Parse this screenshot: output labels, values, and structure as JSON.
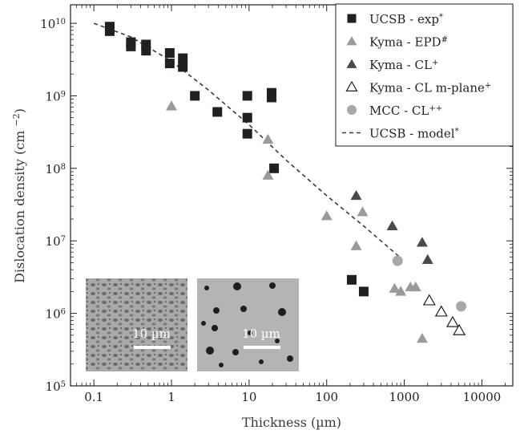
{
  "chart_data": {
    "type": "scatter",
    "xlabel": "Thickness (µm)",
    "ylabel": "Dislocation density (cm−2)",
    "xscale": "log",
    "yscale": "log",
    "xlim": [
      0.05,
      25000
    ],
    "ylim": [
      100000,
      18000000000
    ],
    "x_ticks": [
      {
        "value": 0.1,
        "label": "0.1"
      },
      {
        "value": 1,
        "label": "1"
      },
      {
        "value": 10,
        "label": "10"
      },
      {
        "value": 100,
        "label": "100"
      },
      {
        "value": 1000,
        "label": "1000"
      },
      {
        "value": 10000,
        "label": "10000"
      }
    ],
    "y_ticks": [
      {
        "value": 100000,
        "base": "10",
        "exp": "5"
      },
      {
        "value": 1000000,
        "base": "10",
        "exp": "6"
      },
      {
        "value": 10000000,
        "base": "10",
        "exp": "7"
      },
      {
        "value": 100000000,
        "base": "10",
        "exp": "8"
      },
      {
        "value": 1000000000,
        "base": "10",
        "exp": "9"
      },
      {
        "value": 10000000000,
        "base": "10",
        "exp": "10"
      }
    ],
    "legend_position": "top-right",
    "series": [
      {
        "name": "UCSB - exp",
        "name_sup": "*",
        "marker": "square",
        "color": "#231f20",
        "points": [
          [
            0.16,
            9000000000
          ],
          [
            0.16,
            7800000000
          ],
          [
            0.3,
            5500000000
          ],
          [
            0.3,
            4800000000
          ],
          [
            0.47,
            5100000000
          ],
          [
            0.47,
            4200000000
          ],
          [
            0.95,
            3900000000
          ],
          [
            0.95,
            2800000000
          ],
          [
            1.4,
            3300000000
          ],
          [
            1.4,
            2500000000
          ],
          [
            2,
            1000000000
          ],
          [
            3.9,
            600000000
          ],
          [
            9.5,
            1000000000
          ],
          [
            9.5,
            500000000
          ],
          [
            9.5,
            300000000
          ],
          [
            19.5,
            1100000000
          ],
          [
            19.5,
            950000000
          ],
          [
            21,
            100000000
          ],
          [
            210,
            2900000
          ],
          [
            300,
            2000000
          ]
        ]
      },
      {
        "name": "Kyma - EPD",
        "name_sup": "#",
        "marker": "triangle",
        "color": "#9a9a9a",
        "points": [
          [
            1,
            720000000
          ],
          [
            17.5,
            250000000
          ],
          [
            17.5,
            80000000
          ],
          [
            100,
            22000000
          ],
          [
            240,
            8500000
          ],
          [
            290,
            25000000
          ],
          [
            750,
            2200000
          ],
          [
            900,
            2000000
          ],
          [
            1200,
            2300000
          ],
          [
            1400,
            2300000
          ],
          [
            1700,
            450000
          ]
        ]
      },
      {
        "name": "Kyma - CL",
        "name_sup": "+",
        "marker": "triangle",
        "color": "#4a4a4a",
        "points": [
          [
            240,
            42000000
          ],
          [
            700,
            16000000
          ],
          [
            1700,
            9500000
          ],
          [
            2000,
            5500000
          ]
        ]
      },
      {
        "name": "Kyma - CL m-plane",
        "name_sup": "+",
        "marker": "triangle-open",
        "color": "#231f20",
        "points": [
          [
            2100,
            1500000
          ],
          [
            3000,
            1050000
          ],
          [
            4200,
            750000
          ],
          [
            5100,
            580000
          ]
        ]
      },
      {
        "name": "MCC - CL",
        "name_sup": "++",
        "marker": "circle",
        "color": "#a8a8a8",
        "points": [
          [
            820,
            5300000
          ],
          [
            5400,
            1250000
          ]
        ]
      },
      {
        "name": "UCSB - model",
        "name_sup": "*",
        "marker": "dashed-line",
        "color": "#3a3a3a",
        "points": [
          [
            0.1,
            10000000000
          ],
          [
            0.3,
            6500000000
          ],
          [
            1,
            3000000000
          ],
          [
            3,
            1200000000
          ],
          [
            10,
            400000000
          ],
          [
            30,
            130000000
          ],
          [
            100,
            42000000
          ],
          [
            300,
            16000000
          ],
          [
            900,
            5800000
          ]
        ]
      }
    ],
    "insets": [
      {
        "scale_bar_label": "10 µm"
      },
      {
        "scale_bar_label": "10 µm"
      }
    ]
  }
}
